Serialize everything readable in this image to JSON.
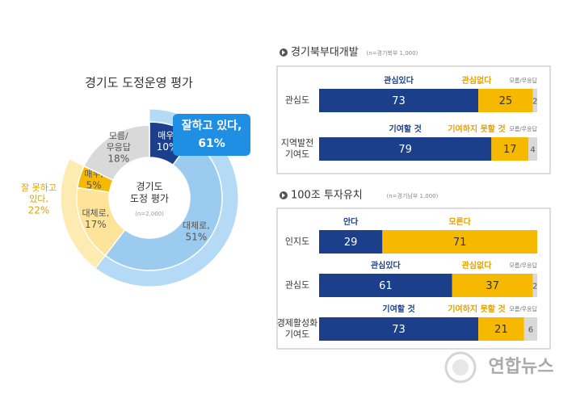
{
  "watermark": "연합뉴스",
  "chart_data": [
    {
      "type": "donut",
      "title": "경기도 도정운영 평가",
      "center_label": [
        "경기도",
        "도정 평가"
      ],
      "center_note": "(n=2,000)",
      "slices": [
        {
          "name": [
            "매우,"
          ],
          "value": 10,
          "value_label": "10%",
          "color": "#1b3f8b"
        },
        {
          "name": [
            "대체로,"
          ],
          "value": 51,
          "value_label": "51%",
          "color": "#9ccbf0"
        },
        {
          "name": [
            "대체로,"
          ],
          "value": 17,
          "value_label": "17%",
          "color": "#fde49a"
        },
        {
          "name": [
            "매우,"
          ],
          "value": 5,
          "value_label": "5%",
          "color": "#f7b900"
        },
        {
          "name": [
            "모름/",
            "무응답"
          ],
          "value": 18,
          "value_label": "18%",
          "color": "#d9d9d9"
        }
      ],
      "groups": [
        {
          "name": [
            "잘하고 있다,"
          ],
          "value": 61,
          "value_label": "61%",
          "color": "#b5daf6"
        },
        {
          "name": [
            "잘 못하고",
            "있다,"
          ],
          "value": 22,
          "value_label": "22%",
          "color": "#feebb2"
        }
      ]
    },
    {
      "type": "stacked_bar_rows",
      "title": "경기북부대개발",
      "subtitle": "(n=경기북부 1,000)",
      "xlim": [
        0,
        100
      ],
      "rows": [
        {
          "label": [
            "관심도"
          ],
          "series": [
            {
              "name": "관심있다",
              "color": "#1b3f8b",
              "value": 73
            },
            {
              "name": "관심없다",
              "color": "#f7b900",
              "value": 25
            },
            {
              "name": "모름/무응답",
              "color": "#d9d9d9",
              "value": 2
            }
          ]
        },
        {
          "label": [
            "지역발전",
            "기여도"
          ],
          "series": [
            {
              "name": "기여할 것",
              "color": "#1b3f8b",
              "value": 79
            },
            {
              "name": "기여하지 못할 것",
              "color": "#f7b900",
              "value": 17
            },
            {
              "name": "모름/무응답",
              "color": "#d9d9d9",
              "value": 4
            }
          ]
        }
      ]
    },
    {
      "type": "stacked_bar_rows",
      "title": "100조 투자유치",
      "subtitle": "(n=경기남부 1,000)",
      "xlim": [
        0,
        100
      ],
      "rows": [
        {
          "label": [
            "인지도"
          ],
          "series": [
            {
              "name": "안다",
              "color": "#1b3f8b",
              "value": 29
            },
            {
              "name": "모른다",
              "color": "#f7b900",
              "value": 71
            }
          ]
        },
        {
          "label": [
            "관심도"
          ],
          "series": [
            {
              "name": "관심있다",
              "color": "#1b3f8b",
              "value": 61
            },
            {
              "name": "관심없다",
              "color": "#f7b900",
              "value": 37
            },
            {
              "name": "모름/무응답",
              "color": "#d9d9d9",
              "value": 2
            }
          ]
        },
        {
          "label": [
            "경제활성화",
            "기여도"
          ],
          "series": [
            {
              "name": "기여할 것",
              "color": "#1b3f8b",
              "value": 73
            },
            {
              "name": "기여하지 못할 것",
              "color": "#f7b900",
              "value": 21
            },
            {
              "name": "모름/무응답",
              "color": "#d9d9d9",
              "value": 6
            }
          ]
        }
      ]
    }
  ]
}
